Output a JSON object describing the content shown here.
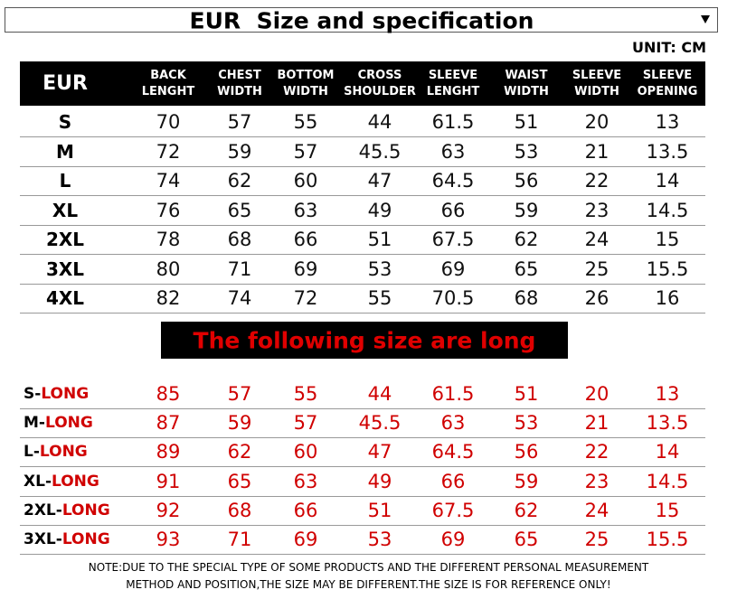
{
  "header": {
    "title": "EUR  Size and specification",
    "unit": "UNIT: CM"
  },
  "table": {
    "columns": [
      [
        "EUR"
      ],
      [
        "BACK",
        "LENGHT"
      ],
      [
        "CHEST",
        "WIDTH"
      ],
      [
        "BOTTOM",
        "WIDTH"
      ],
      [
        "CROSS",
        "SHOULDER"
      ],
      [
        "SLEEVE",
        "LENGHT"
      ],
      [
        "WAIST",
        "WIDTH"
      ],
      [
        "SLEEVE",
        "WIDTH"
      ],
      [
        "SLEEVE",
        "OPENING"
      ]
    ],
    "rows": [
      [
        "S",
        70,
        57,
        55,
        44,
        61.5,
        51,
        20,
        13
      ],
      [
        "M",
        72,
        59,
        57,
        45.5,
        63,
        53,
        21,
        13.5
      ],
      [
        "L",
        74,
        62,
        60,
        47,
        64.5,
        56,
        22,
        14
      ],
      [
        "XL",
        76,
        65,
        63,
        49,
        66,
        59,
        23,
        14.5
      ],
      [
        "2XL",
        78,
        68,
        66,
        51,
        67.5,
        62,
        24,
        15
      ],
      [
        "3XL",
        80,
        71,
        69,
        53,
        69,
        65,
        25,
        15.5
      ],
      [
        "4XL",
        82,
        74,
        72,
        55,
        70.5,
        68,
        26,
        16
      ]
    ]
  },
  "banner": "The following size are long",
  "long_table": {
    "rows": [
      {
        "size": "S-",
        "suffix": "LONG",
        "values": [
          85,
          57,
          55,
          44,
          61.5,
          51,
          20,
          13
        ]
      },
      {
        "size": "M-",
        "suffix": "LONG",
        "values": [
          87,
          59,
          57,
          45.5,
          63,
          53,
          21,
          13.5
        ]
      },
      {
        "size": "L-",
        "suffix": "LONG",
        "values": [
          89,
          62,
          60,
          47,
          64.5,
          56,
          22,
          14
        ]
      },
      {
        "size": "XL-",
        "suffix": "LONG",
        "values": [
          91,
          65,
          63,
          49,
          66,
          59,
          23,
          14.5
        ]
      },
      {
        "size": "2XL-",
        "suffix": "LONG",
        "values": [
          92,
          68,
          66,
          51,
          67.5,
          62,
          24,
          15
        ]
      },
      {
        "size": "3XL-",
        "suffix": "LONG",
        "values": [
          93,
          71,
          69,
          53,
          69,
          65,
          25,
          15.5
        ]
      }
    ]
  },
  "note": [
    "NOTE:DUE TO THE SPECIAL TYPE OF SOME PRODUCTS AND THE DIFFERENT PERSONAL MEASUREMENT",
    "METHOD AND POSITION,THE SIZE MAY BE DIFFERENT.THE SIZE IS FOR REFERENCE ONLY!"
  ]
}
